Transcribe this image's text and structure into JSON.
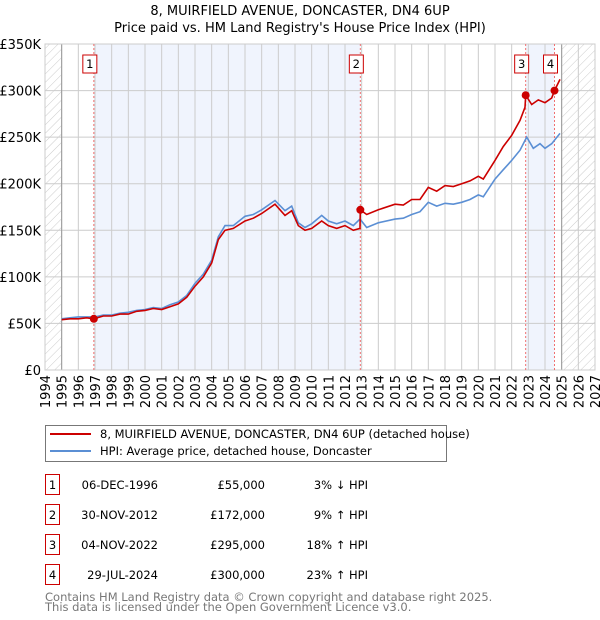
{
  "chart_data": {
    "type": "line",
    "title": "8, MUIRFIELD AVENUE, DONCASTER, DN4 6UP",
    "subtitle": "Price paid vs. HM Land Registry's House Price Index (HPI)",
    "xlim": [
      1994,
      2027
    ],
    "ylim": [
      0,
      350000
    ],
    "x_ticks": [
      1994,
      1995,
      1996,
      1997,
      1998,
      1999,
      2000,
      2001,
      2002,
      2003,
      2004,
      2005,
      2006,
      2007,
      2008,
      2009,
      2010,
      2011,
      2012,
      2013,
      2014,
      2015,
      2016,
      2017,
      2018,
      2019,
      2020,
      2021,
      2022,
      2023,
      2024,
      2025,
      2026,
      2027
    ],
    "y_ticks": [
      0,
      50000,
      100000,
      150000,
      200000,
      250000,
      300000,
      350000
    ],
    "y_tick_labels": [
      "£0",
      "£50K",
      "£100K",
      "£150K",
      "£200K",
      "£250K",
      "£300K",
      "£350K"
    ],
    "grid": true,
    "data_start": 1995.0,
    "data_end": 2025.0,
    "shaded_ranges": [
      [
        1996.93,
        2012.92
      ],
      [
        2022.84,
        2024.57
      ]
    ],
    "series": [
      {
        "name": "8, MUIRFIELD AVENUE, DONCASTER, DN4 6UP (detached house)",
        "color": "#cc0000",
        "x": [
          1995,
          1995.5,
          1996,
          1996.5,
          1996.93,
          1997.5,
          1998,
          1998.5,
          1999,
          1999.5,
          2000,
          2000.5,
          2001,
          2001.5,
          2002,
          2002.5,
          2003,
          2003.5,
          2004,
          2004.4,
          2004.8,
          2005.3,
          2006,
          2006.5,
          2007,
          2007.8,
          2008.4,
          2008.8,
          2009.2,
          2009.6,
          2010,
          2010.6,
          2011,
          2011.5,
          2012,
          2012.5,
          2012.9,
          2012.92,
          2013.3,
          2014,
          2015,
          2015.5,
          2016,
          2016.5,
          2017,
          2017.5,
          2018,
          2018.5,
          2019,
          2019.5,
          2020,
          2020.3,
          2021,
          2021.5,
          2022,
          2022.5,
          2022.8,
          2022.84,
          2023.2,
          2023.6,
          2024,
          2024.4,
          2024.57,
          2024.9
        ],
        "y": [
          54000,
          55000,
          55000,
          56000,
          55000,
          58000,
          58000,
          60000,
          60000,
          63000,
          64000,
          66000,
          65000,
          68000,
          71000,
          78000,
          90000,
          100000,
          115000,
          140000,
          150000,
          152000,
          160000,
          163000,
          168000,
          178000,
          166000,
          171000,
          155000,
          150000,
          152000,
          160000,
          155000,
          152000,
          155000,
          150000,
          152000,
          172000,
          167000,
          172000,
          178000,
          177000,
          183000,
          183000,
          196000,
          192000,
          198000,
          197000,
          200000,
          203000,
          208000,
          205000,
          225000,
          240000,
          252000,
          268000,
          282000,
          295000,
          285000,
          290000,
          287000,
          292000,
          300000,
          312000
        ]
      },
      {
        "name": "HPI: Average price, detached house, Doncaster",
        "color": "#5b8fd4",
        "x": [
          1995,
          1995.5,
          1996,
          1996.5,
          1997,
          1997.5,
          1998,
          1998.5,
          1999,
          1999.5,
          2000,
          2000.5,
          2001,
          2001.5,
          2002,
          2002.5,
          2003,
          2003.5,
          2004,
          2004.4,
          2004.8,
          2005.3,
          2006,
          2006.5,
          2007,
          2007.8,
          2008.4,
          2008.8,
          2009.2,
          2009.6,
          2010,
          2010.6,
          2011,
          2011.5,
          2012,
          2012.5,
          2012.9,
          2013.3,
          2014,
          2015,
          2015.5,
          2016,
          2016.5,
          2017,
          2017.5,
          2018,
          2018.5,
          2019,
          2019.5,
          2020,
          2020.3,
          2021,
          2021.5,
          2022,
          2022.5,
          2022.9,
          2023.3,
          2023.7,
          2024,
          2024.4,
          2024.9
        ],
        "y": [
          55000,
          56000,
          57000,
          57000,
          57000,
          59000,
          59000,
          61000,
          62000,
          64000,
          65000,
          67000,
          66000,
          70000,
          73000,
          80000,
          93000,
          103000,
          118000,
          143000,
          155000,
          155000,
          165000,
          167000,
          172000,
          182000,
          171000,
          176000,
          158000,
          153000,
          157000,
          166000,
          160000,
          157000,
          160000,
          155000,
          162000,
          153000,
          158000,
          162000,
          163000,
          167000,
          170000,
          180000,
          176000,
          179000,
          178000,
          180000,
          183000,
          188000,
          186000,
          205000,
          215000,
          225000,
          236000,
          250000,
          238000,
          243000,
          238000,
          243000,
          254000
        ]
      }
    ],
    "sales": [
      {
        "label": "1",
        "x": 1996.93,
        "y": 55000,
        "date": "06-DEC-1996",
        "price": "£55,000",
        "hpi": "3% ↓ HPI"
      },
      {
        "label": "2",
        "x": 2012.92,
        "y": 172000,
        "date": "30-NOV-2012",
        "price": "£172,000",
        "hpi": "9% ↑ HPI"
      },
      {
        "label": "3",
        "x": 2022.84,
        "y": 295000,
        "date": "04-NOV-2022",
        "price": "£295,000",
        "hpi": "18% ↑ HPI"
      },
      {
        "label": "4",
        "x": 2024.57,
        "y": 300000,
        "date": "29-JUL-2024",
        "price": "£300,000",
        "hpi": "23% ↑ HPI"
      }
    ],
    "legend_placement": "below"
  },
  "footer": {
    "line1": "Contains HM Land Registry data © Crown copyright and database right 2025.",
    "line2": "This data is licensed under the Open Government Licence v3.0."
  }
}
